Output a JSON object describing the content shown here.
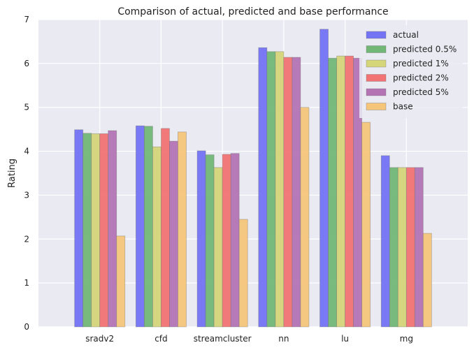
{
  "chart_data": {
    "type": "bar",
    "title": "Comparison of actual, predicted and base performance",
    "xlabel": "",
    "ylabel": "Rating",
    "ylim": [
      0,
      7
    ],
    "yticks": [
      0,
      1,
      2,
      3,
      4,
      5,
      6,
      7
    ],
    "grid": true,
    "legend_position": "top-right",
    "categories": [
      "sradv2",
      "cfd",
      "streamcluster",
      "nn",
      "lu",
      "mg"
    ],
    "series": [
      {
        "name": "actual",
        "color": "#7373f4",
        "values": [
          4.49,
          4.58,
          4.01,
          6.36,
          6.78,
          3.9
        ]
      },
      {
        "name": "predicted 0.5%",
        "color": "#72b776",
        "values": [
          4.41,
          4.57,
          3.92,
          6.27,
          6.12,
          3.63
        ]
      },
      {
        "name": "predicted 1%",
        "color": "#d5d57a",
        "values": [
          4.4,
          4.1,
          3.63,
          6.27,
          6.17,
          3.63
        ]
      },
      {
        "name": "predicted 2%",
        "color": "#f27373",
        "values": [
          4.4,
          4.52,
          3.93,
          6.14,
          6.17,
          3.63
        ]
      },
      {
        "name": "predicted 5%",
        "color": "#b474b4",
        "values": [
          4.47,
          4.23,
          3.95,
          6.14,
          6.12,
          3.63
        ]
      },
      {
        "name": "base",
        "color": "#f5c67a",
        "values": [
          2.07,
          4.44,
          2.45,
          5.0,
          4.66,
          2.13
        ]
      }
    ]
  }
}
